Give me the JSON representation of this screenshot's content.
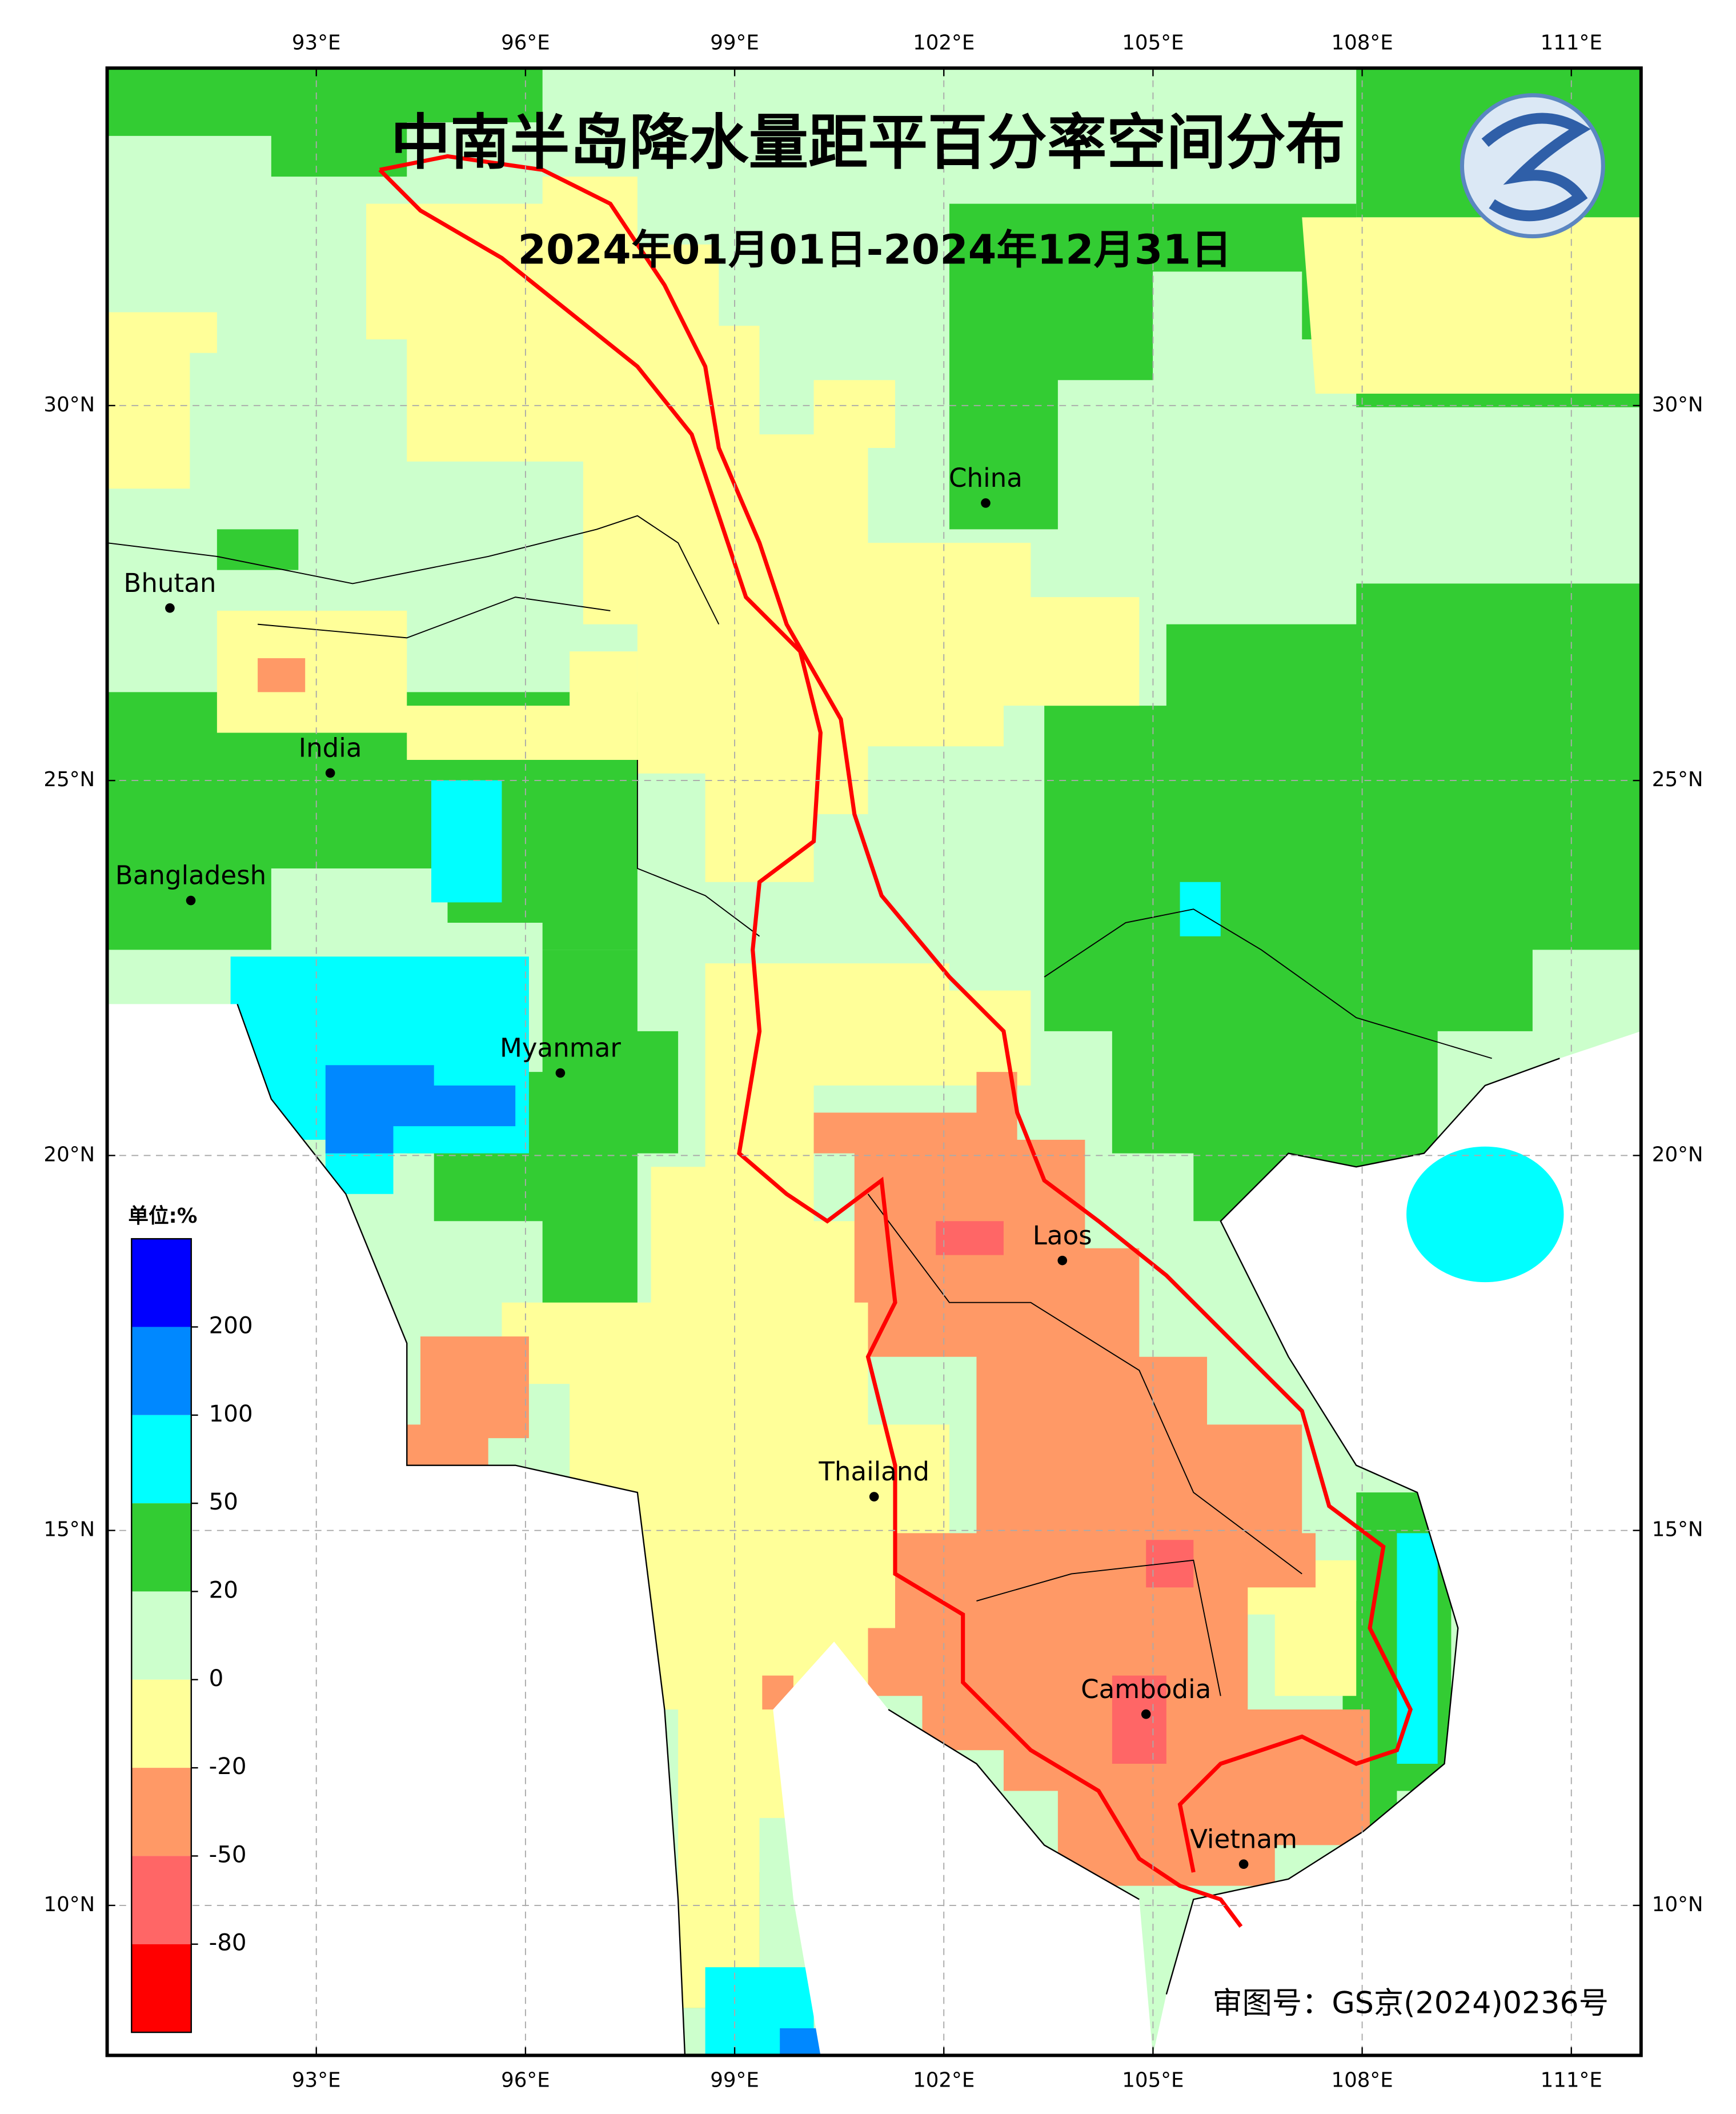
{
  "title": "中南半岛降水量距平百分率空间分布",
  "subtitle": "2024年01月01日-2024年12月31日",
  "approval": "审图号：GS京(2024)0236号",
  "map": {
    "xlim": [
      90,
      112
    ],
    "ylim": [
      8,
      34.5
    ],
    "lon_ticks": [
      {
        "value": 93,
        "label": "93°E"
      },
      {
        "value": 96,
        "label": "96°E"
      },
      {
        "value": 99,
        "label": "99°E"
      },
      {
        "value": 102,
        "label": "102°E"
      },
      {
        "value": 105,
        "label": "105°E"
      },
      {
        "value": 108,
        "label": "108°E"
      },
      {
        "value": 111,
        "label": "111°E"
      }
    ],
    "lat_ticks": [
      {
        "value": 10,
        "label": "10°N"
      },
      {
        "value": 15,
        "label": "15°N"
      },
      {
        "value": 20,
        "label": "20°N"
      },
      {
        "value": 25,
        "label": "25°N"
      },
      {
        "value": 30,
        "label": "30°N"
      }
    ],
    "grid": true,
    "countries": [
      {
        "name": "Bhutan",
        "lon": 90.9,
        "lat": 27.3
      },
      {
        "name": "India",
        "lon": 93.2,
        "lat": 25.1
      },
      {
        "name": "Bangladesh",
        "lon": 91.2,
        "lat": 23.4
      },
      {
        "name": "Myanmar",
        "lon": 96.5,
        "lat": 21.1
      },
      {
        "name": "China",
        "lon": 102.6,
        "lat": 28.7
      },
      {
        "name": "Laos",
        "lon": 103.7,
        "lat": 18.6
      },
      {
        "name": "Thailand",
        "lon": 101.0,
        "lat": 15.45
      },
      {
        "name": "Cambodia",
        "lon": 104.9,
        "lat": 12.55
      },
      {
        "name": "Vietnam",
        "lon": 106.3,
        "lat": 10.55
      }
    ]
  },
  "legend": {
    "unit": "单位:%",
    "levels": [
      200,
      100,
      50,
      20,
      0,
      -20,
      -50,
      -80
    ],
    "colors": [
      "#0000ff",
      "#0088ff",
      "#00ffff",
      "#33cc33",
      "#ccffcc",
      "#ffff99",
      "#ff9966",
      "#ff6666",
      "#ff0000"
    ]
  }
}
